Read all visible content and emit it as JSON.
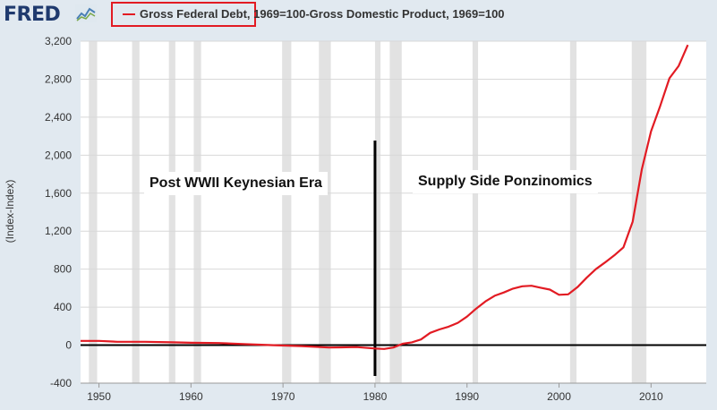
{
  "header": {
    "logo_text": "FRED",
    "legend_label": "Gross Federal Debt, 1969=100-Gross Domestic Product, 1969=100",
    "line_color": "#e21b23"
  },
  "annotations": {
    "left": "Post WWII Keynesian Era",
    "right": "Supply Side Ponzinomics"
  },
  "chart_data": {
    "type": "line",
    "title": "",
    "xlabel": "",
    "ylabel": "(Index-Index)",
    "xlim": [
      1948,
      2016
    ],
    "ylim": [
      -400,
      3200
    ],
    "yticks": [
      -400,
      0,
      400,
      800,
      1200,
      1600,
      2000,
      2400,
      2800,
      3200
    ],
    "xticks": [
      1950,
      1960,
      1970,
      1980,
      1990,
      2000,
      2010
    ],
    "ytick_labels": [
      "-400",
      "0",
      "400",
      "800",
      "1,200",
      "1,600",
      "2,000",
      "2,400",
      "2,800",
      "3,200"
    ],
    "xtick_labels": [
      "1950",
      "1960",
      "1970",
      "1980",
      "1990",
      "2000",
      "2010"
    ],
    "grid": "horizontal",
    "recessions": [
      [
        1948.9,
        1949.8
      ],
      [
        1953.6,
        1954.4
      ],
      [
        1957.6,
        1958.3
      ],
      [
        1960.3,
        1961.1
      ],
      [
        1969.9,
        1970.9
      ],
      [
        1973.9,
        1975.2
      ],
      [
        1980.0,
        1980.6
      ],
      [
        1981.6,
        1982.9
      ],
      [
        1990.6,
        1991.2
      ],
      [
        2001.2,
        2001.9
      ],
      [
        2007.9,
        2009.5
      ]
    ],
    "reference_lines": {
      "horizontal_y": 0,
      "vertical_x": 1980
    },
    "series": [
      {
        "name": "Gross Federal Debt, 1969=100-Gross Domestic Product, 1969=100",
        "color": "#e21b23",
        "points": [
          [
            1948,
            45
          ],
          [
            1950,
            45
          ],
          [
            1952,
            35
          ],
          [
            1955,
            35
          ],
          [
            1958,
            30
          ],
          [
            1960,
            25
          ],
          [
            1963,
            22
          ],
          [
            1966,
            10
          ],
          [
            1969,
            0
          ],
          [
            1972,
            -10
          ],
          [
            1975,
            -25
          ],
          [
            1978,
            -20
          ],
          [
            1980,
            -35
          ],
          [
            1981,
            -40
          ],
          [
            1982,
            -25
          ],
          [
            1983,
            15
          ],
          [
            1984,
            30
          ],
          [
            1985,
            60
          ],
          [
            1986,
            130
          ],
          [
            1987,
            165
          ],
          [
            1988,
            195
          ],
          [
            1989,
            235
          ],
          [
            1990,
            300
          ],
          [
            1991,
            385
          ],
          [
            1992,
            460
          ],
          [
            1993,
            520
          ],
          [
            1994,
            555
          ],
          [
            1995,
            595
          ],
          [
            1996,
            620
          ],
          [
            1997,
            625
          ],
          [
            1998,
            605
          ],
          [
            1999,
            585
          ],
          [
            2000,
            530
          ],
          [
            2001,
            535
          ],
          [
            2002,
            610
          ],
          [
            2003,
            710
          ],
          [
            2004,
            800
          ],
          [
            2005,
            870
          ],
          [
            2006,
            945
          ],
          [
            2007,
            1030
          ],
          [
            2008,
            1300
          ],
          [
            2009,
            1850
          ],
          [
            2010,
            2250
          ],
          [
            2011,
            2520
          ],
          [
            2012,
            2810
          ],
          [
            2013,
            2940
          ],
          [
            2014,
            3160
          ]
        ]
      }
    ]
  }
}
